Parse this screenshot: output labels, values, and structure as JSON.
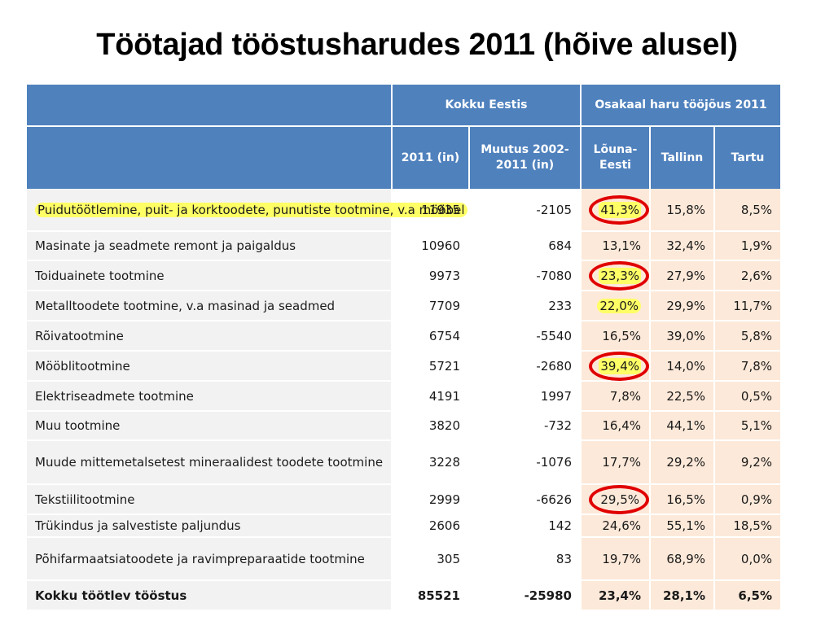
{
  "title": "Töötajad tööstusharudes  2011 (hõive alusel)",
  "colors": {
    "header_blue": "#4f81bd",
    "name_cell_grey": "#f2f2f2",
    "share_cell_peach": "#fde9d9",
    "highlight_yellow": "#ffff66",
    "circle_red": "#e00000"
  },
  "header": {
    "group_total": "Kokku Eestis",
    "group_share": "Osakaal haru tööjõus 2011",
    "col_2011": "2011 (in)",
    "col_change": "Muutus 2002-2011 (in)",
    "col_louna": "Lõuna-Eesti",
    "col_tallinn": "Tallinn",
    "col_tartu": "Tartu"
  },
  "rows": [
    {
      "name": "Puidutöötlemine, puit- ja korktoodete, punutiste tootmine, v.a mööbel",
      "y2011": "11935",
      "change": "-2105",
      "louna": "41,3%",
      "tallinn": "15,8%",
      "tartu": "8,5%"
    },
    {
      "name": "Masinate ja seadmete remont ja paigaldus",
      "y2011": "10960",
      "change": "684",
      "louna": "13,1%",
      "tallinn": "32,4%",
      "tartu": "1,9%"
    },
    {
      "name": "Toiduainete tootmine",
      "y2011": "9973",
      "change": "-7080",
      "louna": "23,3%",
      "tallinn": "27,9%",
      "tartu": "2,6%"
    },
    {
      "name": "Metalltoodete tootmine, v.a masinad ja seadmed",
      "y2011": "7709",
      "change": "233",
      "louna": "22,0%",
      "tallinn": "29,9%",
      "tartu": "11,7%"
    },
    {
      "name": "Rõivatootmine",
      "y2011": "6754",
      "change": "-5540",
      "louna": "16,5%",
      "tallinn": "39,0%",
      "tartu": "5,8%"
    },
    {
      "name": "Mööblitootmine",
      "y2011": "5721",
      "change": "-2680",
      "louna": "39,4%",
      "tallinn": "14,0%",
      "tartu": "7,8%"
    },
    {
      "name": "Elektriseadmete tootmine",
      "y2011": "4191",
      "change": "1997",
      "louna": "7,8%",
      "tallinn": "22,5%",
      "tartu": "0,5%"
    },
    {
      "name": "Muu tootmine",
      "y2011": "3820",
      "change": "-732",
      "louna": "16,4%",
      "tallinn": "44,1%",
      "tartu": "5,1%"
    },
    {
      "name": "Muude mittemetalsetest mineraalidest toodete tootmine",
      "y2011": "3228",
      "change": "-1076",
      "louna": "17,7%",
      "tallinn": "29,2%",
      "tartu": "9,2%"
    },
    {
      "name": "Tekstiilitootmine",
      "y2011": "2999",
      "change": "-6626",
      "louna": "29,5%",
      "tallinn": "16,5%",
      "tartu": "0,9%"
    },
    {
      "name": "Trükindus ja salvestiste paljundus",
      "y2011": "2606",
      "change": "142",
      "louna": "24,6%",
      "tallinn": "55,1%",
      "tartu": "18,5%"
    },
    {
      "name": "Põhifarmaatsiatoodete ja ravimpreparaatide tootmine",
      "y2011": "305",
      "change": "83",
      "louna": "19,7%",
      "tallinn": "68,9%",
      "tartu": "0,0%"
    }
  ],
  "total": {
    "name": "Kokku töötlev tööstus",
    "y2011": "85521",
    "change": "-25980",
    "louna": "23,4%",
    "tallinn": "28,1%",
    "tartu": "6,5%"
  }
}
